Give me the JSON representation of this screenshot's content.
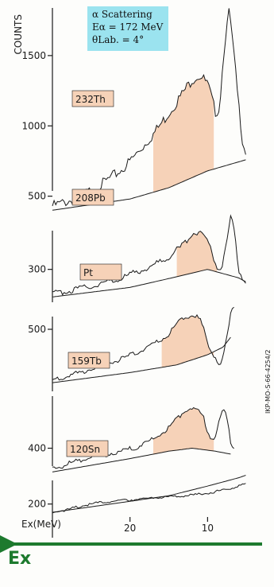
{
  "info": {
    "line1": "α Scattering",
    "line2": "Eα = 172 MeV",
    "line3": "θLab. = 4°"
  },
  "side_code": "IKP-MO-S-66-4254/2",
  "ex_label": "Ex",
  "colors": {
    "peak_fill": "#f6d2b8",
    "arrow": "#1d7a2e",
    "info_box": "#9be3ef",
    "label_box": "#f6d2b8",
    "ink": "#1a1a1a"
  },
  "chart_data": {
    "type": "line",
    "title": "",
    "ylabel": "COUNTS",
    "xlabel": "Ex(MeV)",
    "xlim": [
      30,
      4
    ],
    "x_ticks": [
      "20",
      "10"
    ],
    "x_tick_values": [
      20,
      10
    ],
    "grid": false,
    "panels": [
      {
        "label": "232Th",
        "y_ticks": [
          500,
          1000,
          1500
        ],
        "ylim": [
          300,
          1850
        ],
        "background": [
          [
            30,
            400
          ],
          [
            20,
            480
          ],
          [
            15,
            560
          ],
          [
            10,
            680
          ],
          [
            5,
            760
          ]
        ],
        "spectrum": [
          [
            30,
            430
          ],
          [
            27,
            480
          ],
          [
            24,
            570
          ],
          [
            21,
            690
          ],
          [
            19,
            810
          ],
          [
            17,
            940
          ],
          [
            15,
            1090
          ],
          [
            13,
            1250
          ],
          [
            12,
            1330
          ],
          [
            11,
            1360
          ],
          [
            10,
            1300
          ],
          [
            9,
            1100
          ],
          [
            8.5,
            1120
          ],
          [
            7.8,
            1600
          ],
          [
            7.2,
            1820
          ],
          [
            6.6,
            1500
          ],
          [
            6.0,
            1150
          ],
          [
            5.5,
            900
          ],
          [
            5,
            800
          ]
        ],
        "peak_range": [
          17,
          9
        ]
      },
      {
        "label": "208Pb",
        "y_ticks": [
          300
        ],
        "ylim": [
          100,
          700
        ],
        "background": [
          [
            30,
            170
          ],
          [
            20,
            215
          ],
          [
            14,
            265
          ],
          [
            10,
            300
          ],
          [
            6,
            260
          ],
          [
            5,
            240
          ]
        ],
        "spectrum": [
          [
            30,
            185
          ],
          [
            27,
            205
          ],
          [
            24,
            230
          ],
          [
            21,
            260
          ],
          [
            19,
            290
          ],
          [
            17,
            320
          ],
          [
            15,
            360
          ],
          [
            13,
            420
          ],
          [
            12,
            470
          ],
          [
            11,
            480
          ],
          [
            10,
            440
          ],
          [
            9,
            330
          ],
          [
            8.5,
            300
          ],
          [
            8,
            330
          ],
          [
            7.4,
            460
          ],
          [
            7.0,
            560
          ],
          [
            6.5,
            460
          ],
          [
            6.0,
            300
          ],
          [
            5.5,
            255
          ],
          [
            5,
            240
          ]
        ],
        "peak_range": [
          14,
          8.7
        ]
      },
      {
        "label": "Pt",
        "y_ticks": [
          500
        ],
        "ylim": [
          250,
          650
        ],
        "background": [
          [
            30,
            290
          ],
          [
            20,
            330
          ],
          [
            14,
            360
          ],
          [
            12,
            380
          ],
          [
            10,
            400
          ],
          [
            8,
            430
          ],
          [
            7,
            470
          ]
        ],
        "spectrum": [
          [
            30,
            300
          ],
          [
            27,
            325
          ],
          [
            24,
            355
          ],
          [
            21,
            385
          ],
          [
            19,
            410
          ],
          [
            17,
            440
          ],
          [
            15,
            480
          ],
          [
            14,
            520
          ],
          [
            13,
            545
          ],
          [
            12,
            560
          ],
          [
            11,
            540
          ],
          [
            10.5,
            500
          ],
          [
            10,
            440
          ],
          [
            9,
            390
          ],
          [
            8.5,
            360
          ],
          [
            8,
            390
          ],
          [
            7.5,
            470
          ],
          [
            7,
            560
          ],
          [
            6.6,
            590
          ]
        ],
        "peak_range": [
          16,
          9
        ]
      },
      {
        "label": "159Tb",
        "y_ticks": [
          400
        ],
        "ylim": [
          270,
          640
        ],
        "background": [
          [
            30,
            320
          ],
          [
            20,
            365
          ],
          [
            15,
            390
          ],
          [
            12,
            400
          ],
          [
            9,
            390
          ],
          [
            7,
            380
          ]
        ],
        "spectrum": [
          [
            30,
            330
          ],
          [
            27,
            355
          ],
          [
            24,
            375
          ],
          [
            21,
            390
          ],
          [
            19,
            405
          ],
          [
            17,
            430
          ],
          [
            15,
            470
          ],
          [
            14,
            500
          ],
          [
            13,
            525
          ],
          [
            12,
            540
          ],
          [
            11,
            520
          ],
          [
            10.5,
            500
          ],
          [
            10,
            460
          ],
          [
            9.5,
            430
          ],
          [
            9,
            440
          ],
          [
            8.5,
            490
          ],
          [
            8,
            530
          ],
          [
            7.6,
            510
          ],
          [
            7,
            420
          ],
          [
            6.6,
            400
          ]
        ],
        "peak_range": [
          17,
          9
        ]
      },
      {
        "label": "120Sn",
        "y_ticks": [
          200
        ],
        "ylim": [
          130,
          320
        ],
        "background": [
          [
            30,
            170
          ],
          [
            20,
            210
          ],
          [
            15,
            230
          ],
          [
            10,
            265
          ],
          [
            6,
            295
          ],
          [
            5,
            305
          ]
        ],
        "spectrum": [
          [
            30,
            170
          ],
          [
            28,
            180
          ],
          [
            26,
            195
          ],
          [
            24,
            205
          ],
          [
            22,
            210
          ],
          [
            20,
            215
          ],
          [
            18,
            220
          ],
          [
            16,
            225
          ],
          [
            14,
            228
          ],
          [
            12,
            232
          ],
          [
            10,
            240
          ],
          [
            8,
            250
          ],
          [
            6,
            265
          ],
          [
            5,
            275
          ]
        ],
        "peak_range": null
      }
    ]
  }
}
